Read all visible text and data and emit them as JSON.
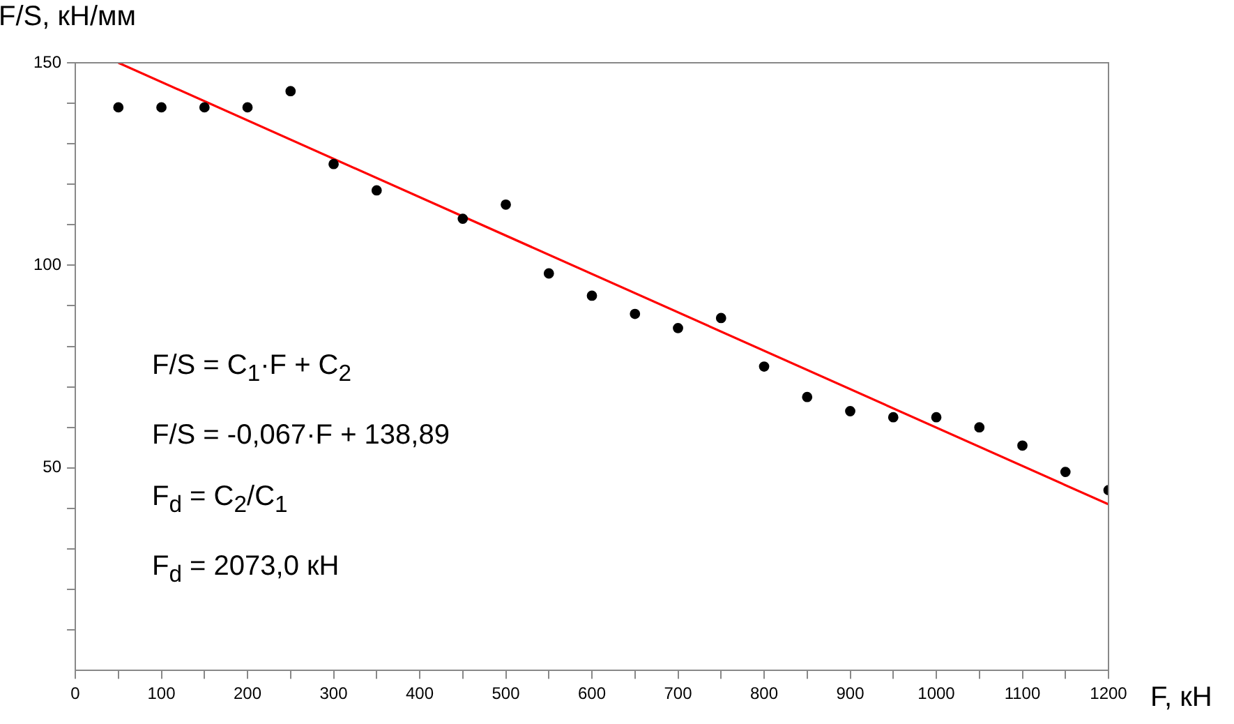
{
  "chart_data": {
    "type": "scatter",
    "xlabel": "F, кН",
    "ylabel": "F/S, кН/мм",
    "x": [
      50,
      100,
      150,
      200,
      250,
      300,
      350,
      450,
      500,
      550,
      600,
      650,
      700,
      750,
      800,
      850,
      900,
      950,
      1000,
      1050,
      1100,
      1150,
      1200
    ],
    "series": [
      {
        "color": "#000000",
        "values": [
          139,
          139,
          139,
          139,
          143,
          125,
          118.5,
          111.5,
          115,
          98,
          92.5,
          88,
          84.5,
          87,
          75,
          67.5,
          64,
          62.5,
          62.5,
          60,
          55.5,
          49,
          44.5
        ]
      },
      {
        "type": "line",
        "color": "#ff0000",
        "x": [
          50,
          1200
        ],
        "values": [
          150,
          41
        ],
        "marker": "none"
      }
    ],
    "xlim": [
      0,
      1200
    ],
    "ylim": [
      0,
      150
    ],
    "xticks": [
      0,
      {
        "value": 50,
        "label": null
      },
      100,
      {
        "value": 150,
        "label": null
      },
      200,
      {
        "value": 250,
        "label": null
      },
      300,
      {
        "value": 350,
        "label": null
      },
      400,
      {
        "value": 450,
        "label": null
      },
      500,
      {
        "value": 550,
        "label": null
      },
      600,
      {
        "value": 650,
        "label": null
      },
      700,
      {
        "value": 750,
        "label": null
      },
      800,
      {
        "value": 850,
        "label": null
      },
      900,
      {
        "value": 950,
        "label": null
      },
      1000,
      {
        "value": 1050,
        "label": null
      },
      1100,
      {
        "value": 1150,
        "label": null
      },
      1200
    ],
    "yticks": [
      {
        "value": 10,
        "label": null
      },
      {
        "value": 20,
        "label": null
      },
      {
        "value": 30,
        "label": null
      },
      {
        "value": 40,
        "label": null
      },
      50,
      {
        "value": 60,
        "label": null
      },
      {
        "value": 70,
        "label": null
      },
      {
        "value": 80,
        "label": null
      },
      {
        "value": 90,
        "label": null
      },
      100,
      {
        "value": 110,
        "label": null
      },
      {
        "value": 120,
        "label": null
      },
      {
        "value": 130,
        "label": null
      },
      {
        "value": 140,
        "label": null
      },
      150
    ],
    "marker": "circle",
    "grid": false,
    "legend": false,
    "annotations": [
      "F/S = C$_{1}$·F + C$_{2}$",
      "F/S = -0,067·F + 138,89",
      "F$_{d}$ = C$_{2}$/C$_{1}$",
      "F$_{d}$ = 2073,0 кН"
    ]
  }
}
